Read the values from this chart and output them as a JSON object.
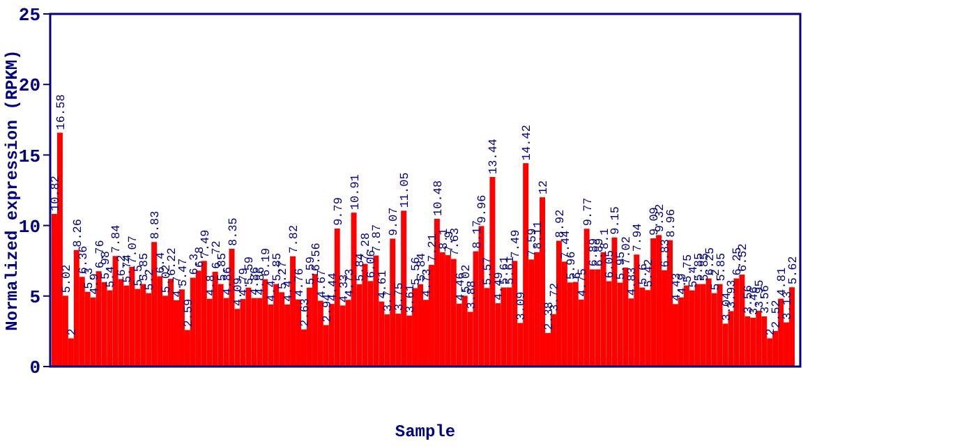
{
  "chart_data": {
    "type": "bar",
    "xlabel": "Sample",
    "ylabel": "Normalized expression (RPKM)",
    "color": "#ff0000",
    "ylim": [
      0,
      25
    ],
    "yticks": [
      0,
      5,
      10,
      15,
      20,
      25
    ],
    "grid": false,
    "data_labels": true,
    "categories": [
      null,
      null,
      null,
      null,
      null,
      null,
      null,
      null,
      null,
      null,
      null,
      null,
      null,
      null,
      null,
      null,
      null,
      null,
      null,
      null,
      null,
      null,
      null,
      null,
      null,
      null,
      null,
      null,
      null,
      null,
      null,
      null,
      null,
      null,
      null,
      null,
      null,
      null,
      null,
      null,
      null,
      null,
      null,
      null,
      null,
      null,
      null,
      null,
      null,
      null,
      null,
      null,
      null,
      null,
      null,
      null,
      null,
      null,
      null,
      null,
      null,
      null,
      null,
      null,
      null,
      null,
      null,
      null,
      null,
      null,
      null,
      null,
      null,
      null,
      null,
      null,
      null,
      null,
      null,
      null,
      null,
      null,
      null,
      null,
      null,
      null,
      null,
      null,
      null,
      null,
      null,
      null,
      null,
      null,
      null,
      null,
      null,
      null,
      null,
      null,
      null,
      null,
      null,
      null,
      null,
      null,
      null,
      null,
      null,
      null,
      null,
      null,
      null,
      null,
      null,
      null,
      null,
      null,
      null,
      null,
      null,
      null,
      null,
      null,
      null,
      null,
      null,
      null,
      null,
      null,
      null,
      null,
      null,
      null
    ],
    "values": [
      10.82,
      16.58,
      5.02,
      2.0,
      8.26,
      6.36,
      5.3,
      4.9,
      6.76,
      5.98,
      5.4,
      7.84,
      6.2,
      5.74,
      7.07,
      5.5,
      5.85,
      5.2,
      8.83,
      6.4,
      5.02,
      6.22,
      4.7,
      5.47,
      2.59,
      6.3,
      6.8,
      7.49,
      4.8,
      6.72,
      5.85,
      4.86,
      8.35,
      4.09,
      4.79,
      5.59,
      4.86,
      4.86,
      6.19,
      4.4,
      5.85,
      5.27,
      4.4,
      7.82,
      4.76,
      2.63,
      5.59,
      6.56,
      4.67,
      2.94,
      4.44,
      9.79,
      4.33,
      4.73,
      10.91,
      5.84,
      7.28,
      6.06,
      7.87,
      4.61,
      3.7,
      9.07,
      3.75,
      11.05,
      3.61,
      5.56,
      5.84,
      4.73,
      7.21,
      10.48,
      8.1,
      7.9,
      7.63,
      4.46,
      5.02,
      3.88,
      8.17,
      9.96,
      5.57,
      13.44,
      4.49,
      5.61,
      5.61,
      7.49,
      3.09,
      14.42,
      7.59,
      8.11,
      12.0,
      2.38,
      3.72,
      8.92,
      7.44,
      5.96,
      6.0,
      4.75,
      9.77,
      6.89,
      6.89,
      8.1,
      6.05,
      9.15,
      5.95,
      7.02,
      4.83,
      7.94,
      5.6,
      5.42,
      9.09,
      9.32,
      6.83,
      8.96,
      4.43,
      4.9,
      5.75,
      5.4,
      5.85,
      5.85,
      6.25,
      5.2,
      5.85,
      3.04,
      3.93,
      6.25,
      6.52,
      3.56,
      3.46,
      3.95,
      3.56,
      2.0,
      2.52,
      4.81,
      3.13,
      5.62
    ]
  }
}
